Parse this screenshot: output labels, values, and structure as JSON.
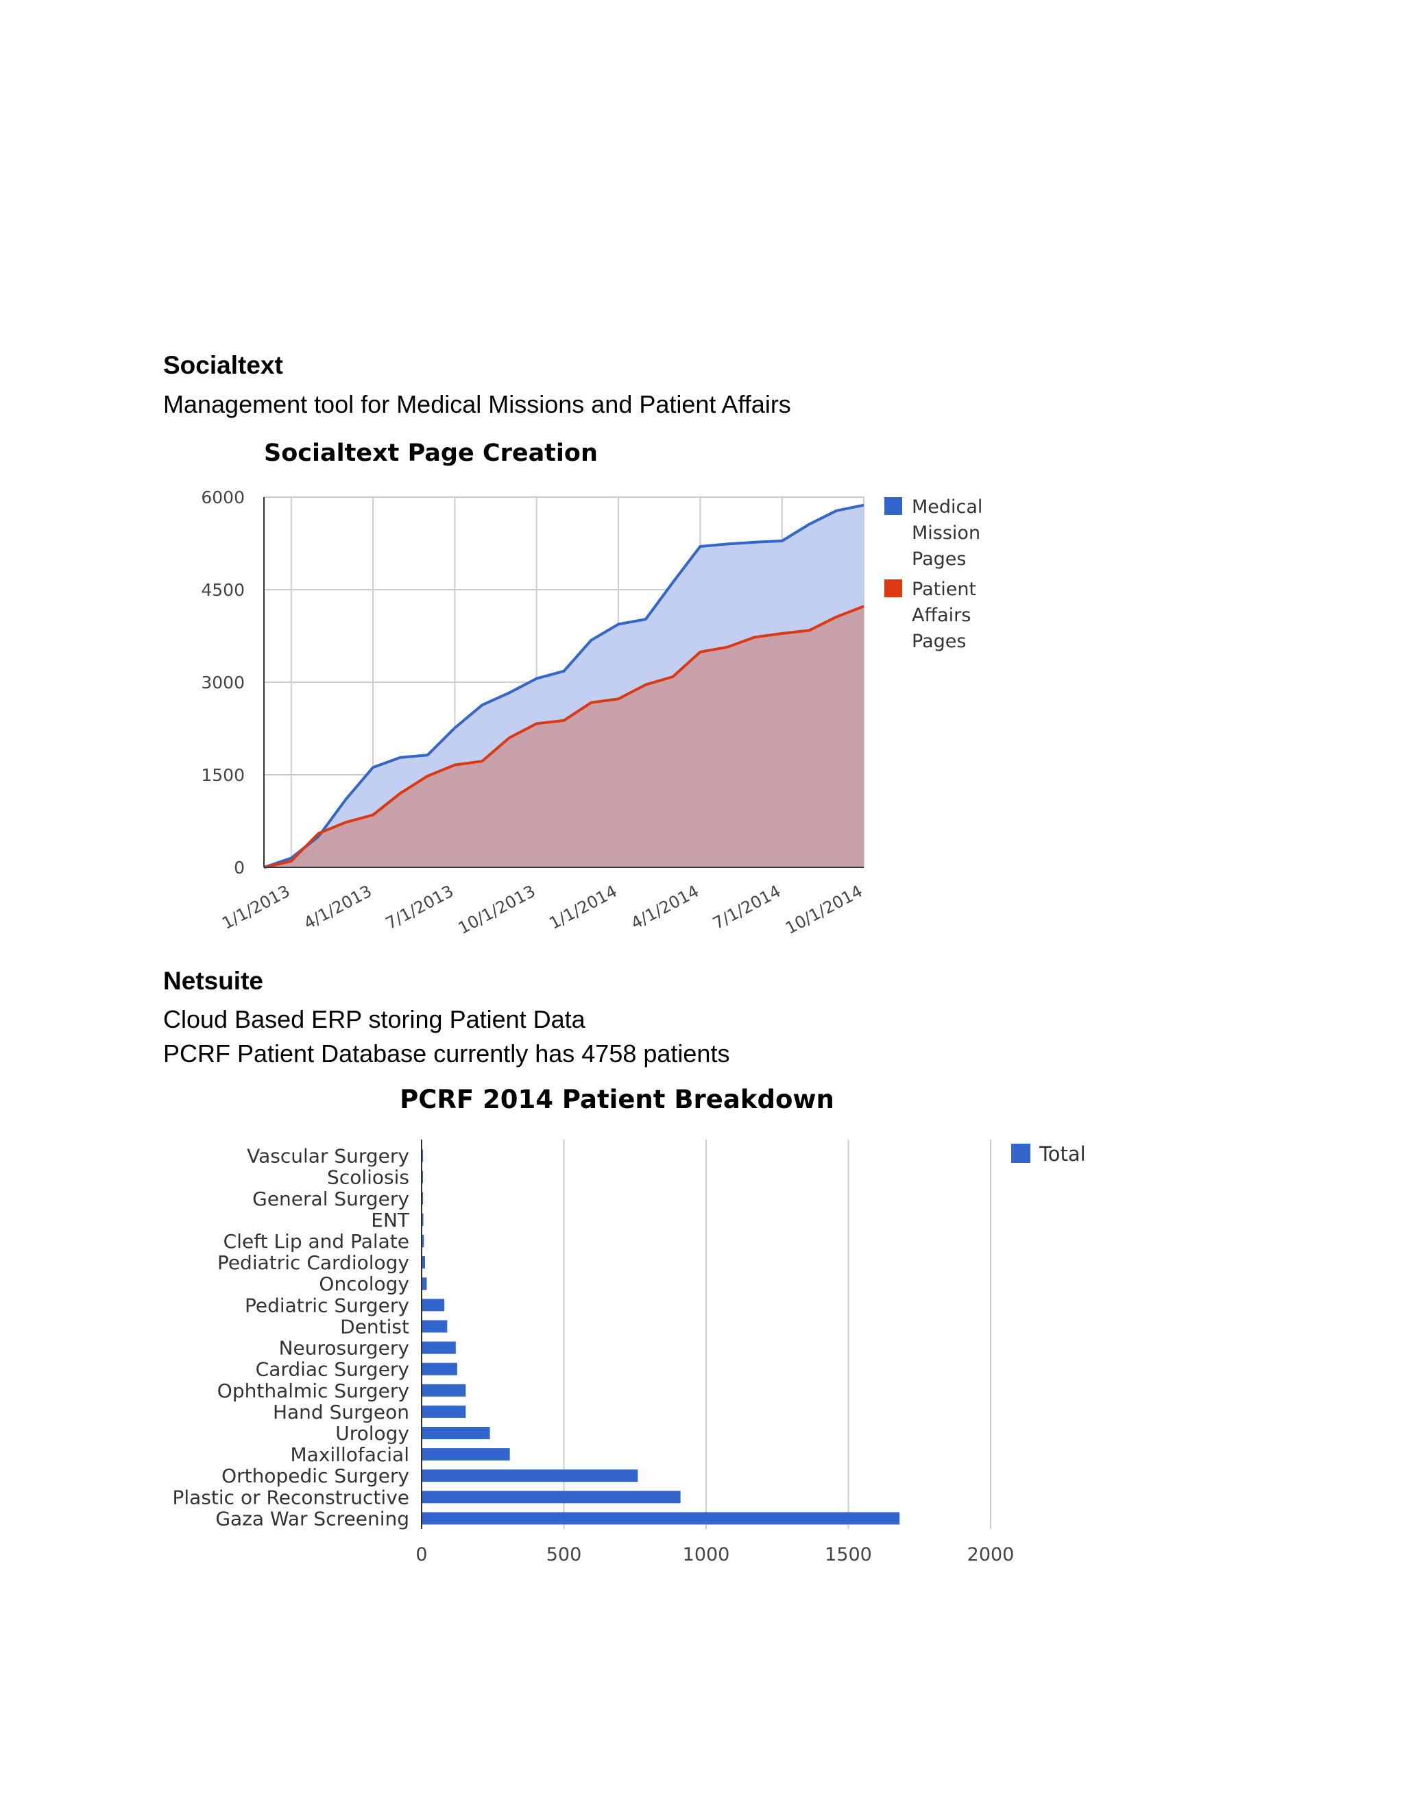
{
  "sections": {
    "socialtext": {
      "title": "Socialtext",
      "description": "Management tool for Medical Missions and Patient Affairs"
    },
    "netsuite": {
      "title": "Netsuite",
      "lines": [
        "Cloud Based ERP storing Patient Data",
        "PCRF Patient Database currently has 4758 patients"
      ]
    }
  },
  "chart_data": [
    {
      "type": "area",
      "title": "Socialtext Page Creation",
      "x_tick_labels": [
        "1/1/2013",
        "4/1/2013",
        "7/1/2013",
        "10/1/2013",
        "1/1/2014",
        "4/1/2014",
        "7/1/2014",
        "10/1/2014"
      ],
      "x": [
        "12/1/2012",
        "1/1/2013",
        "2/1/2013",
        "3/1/2013",
        "4/1/2013",
        "5/1/2013",
        "6/1/2013",
        "7/1/2013",
        "8/1/2013",
        "9/1/2013",
        "10/1/2013",
        "11/1/2013",
        "12/1/2013",
        "1/1/2014",
        "2/1/2014",
        "3/1/2014",
        "4/1/2014",
        "5/1/2014",
        "6/1/2014",
        "7/1/2014",
        "8/1/2014",
        "9/1/2014",
        "10/1/2014"
      ],
      "ylim": [
        0,
        6000
      ],
      "y_ticks": [
        0,
        1500,
        3000,
        4500,
        6000
      ],
      "grid": true,
      "legend_position": "right",
      "series": [
        {
          "name": "Medical Mission Pages",
          "color": "#3366cc",
          "values": [
            0,
            150,
            500,
            1100,
            1620,
            1780,
            1820,
            2260,
            2630,
            2830,
            3060,
            3180,
            3680,
            3940,
            4020,
            4620,
            5200,
            5240,
            5270,
            5290,
            5560,
            5780,
            5870
          ]
        },
        {
          "name": "Patient Affairs Pages",
          "color": "#dc3912",
          "values": [
            0,
            100,
            550,
            730,
            850,
            1200,
            1480,
            1660,
            1720,
            2100,
            2330,
            2380,
            2670,
            2730,
            2960,
            3090,
            3490,
            3570,
            3730,
            3790,
            3840,
            4060,
            4230
          ]
        }
      ]
    },
    {
      "type": "bar",
      "orientation": "horizontal",
      "title": "PCRF 2014 Patient Breakdown",
      "categories": [
        "Vascular Surgery",
        "Scoliosis",
        "General Surgery",
        "ENT",
        "Cleft Lip and Palate",
        "Pediatric Cardiology",
        "Oncology",
        "Pediatric Surgery",
        "Dentist",
        "Neurosurgery",
        "Cardiac Surgery",
        "Ophthalmic Surgery",
        "Hand Surgeon",
        "Urology",
        "Maxillofacial",
        "Orthopedic Surgery",
        "Plastic or Reconstructive",
        "Gaza War Screening"
      ],
      "series": [
        {
          "name": "Total",
          "color": "#3366cc",
          "values": [
            1,
            4,
            5,
            6,
            8,
            12,
            18,
            80,
            90,
            120,
            125,
            155,
            155,
            240,
            310,
            760,
            910,
            1680
          ]
        }
      ],
      "xlim": [
        0,
        2000
      ],
      "x_ticks": [
        0,
        500,
        1000,
        1500,
        2000
      ],
      "grid": true,
      "legend_position": "right"
    }
  ]
}
